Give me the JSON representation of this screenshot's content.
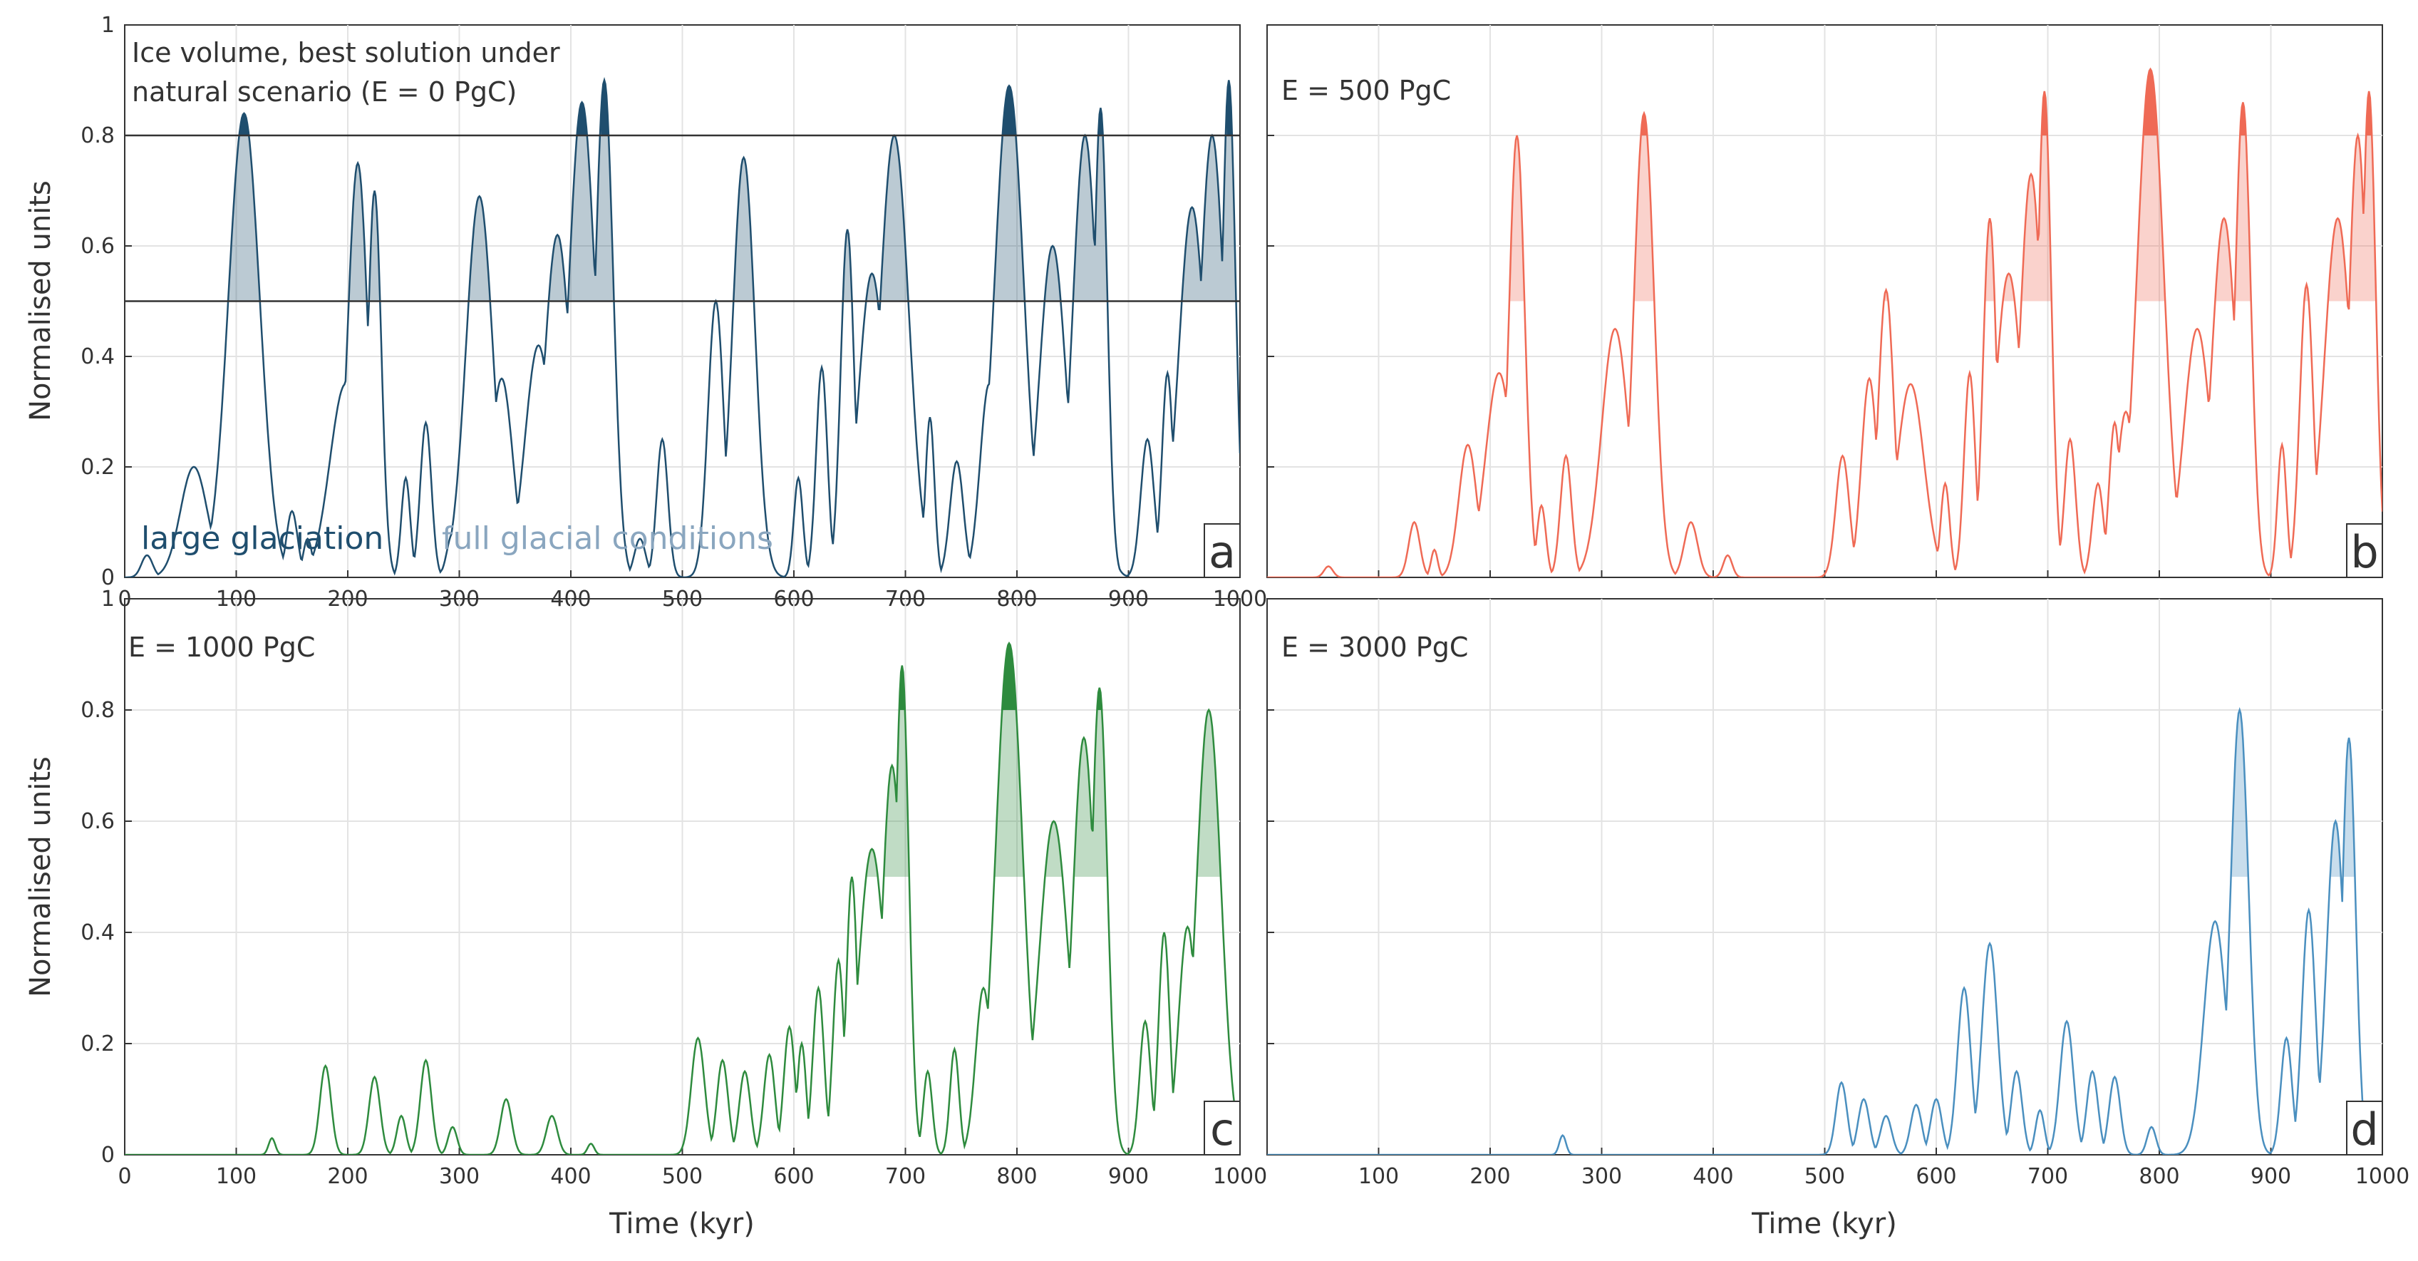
{
  "figure": {
    "x_axis_label": "Time (kyr)",
    "y_axis_label": "Normalised units",
    "x_ticks": [
      0,
      100,
      200,
      300,
      400,
      500,
      600,
      700,
      800,
      900,
      1000
    ],
    "y_ticks": [
      0,
      0.2,
      0.4,
      0.6,
      0.8,
      1
    ],
    "y_tick_labels": [
      "0",
      "0.2",
      "0.4",
      "0.6",
      "0.8",
      "1"
    ],
    "legend": {
      "large_glaciation": "large glaciation",
      "full_glacial": "full glacial conditions",
      "large_glaciation_color": "#1f4e6e",
      "full_glacial_color": "#8aa6bf"
    },
    "thresholds": {
      "full_glacial": 0.5,
      "large_glaciation": 0.8
    }
  },
  "chart_data": [
    {
      "type": "line",
      "panel_letter": "a",
      "title": "Ice volume, best solution under natural scenario (E = 0 PgC)",
      "title_lines": [
        "Ice volume, best solution under",
        "natural scenario (E = 0 PgC)"
      ],
      "color": "#1f4e6e",
      "xlim": [
        0,
        1000
      ],
      "ylim": [
        0,
        1
      ],
      "threshold_lines_shown": true,
      "x_tick_labels_shown": true,
      "peaks": [
        [
          20,
          0.04,
          5
        ],
        [
          62,
          0.2,
          12
        ],
        [
          107,
          0.84,
          14
        ],
        [
          132,
          0.13,
          5
        ],
        [
          150,
          0.12,
          5
        ],
        [
          164,
          0.07,
          4
        ],
        [
          183,
          0.07,
          4
        ],
        [
          198,
          0.35,
          14
        ],
        [
          209,
          0.75,
          9
        ],
        [
          224,
          0.7,
          6
        ],
        [
          252,
          0.18,
          4
        ],
        [
          270,
          0.28,
          5
        ],
        [
          294,
          0.08,
          5
        ],
        [
          318,
          0.69,
          12
        ],
        [
          338,
          0.36,
          10
        ],
        [
          371,
          0.42,
          12
        ],
        [
          388,
          0.62,
          12
        ],
        [
          410,
          0.86,
          12
        ],
        [
          430,
          0.9,
          8
        ],
        [
          462,
          0.07,
          5
        ],
        [
          482,
          0.25,
          5
        ],
        [
          530,
          0.5,
          7
        ],
        [
          555,
          0.76,
          10
        ],
        [
          604,
          0.18,
          4
        ],
        [
          625,
          0.38,
          5
        ],
        [
          648,
          0.63,
          6
        ],
        [
          670,
          0.55,
          12
        ],
        [
          690,
          0.8,
          13
        ],
        [
          722,
          0.29,
          4
        ],
        [
          746,
          0.21,
          6
        ],
        [
          764,
          0.05,
          3
        ],
        [
          775,
          0.35,
          8
        ],
        [
          793,
          0.89,
          13
        ],
        [
          832,
          0.6,
          12
        ],
        [
          861,
          0.8,
          11
        ],
        [
          875,
          0.85,
          6
        ],
        [
          917,
          0.25,
          6
        ],
        [
          935,
          0.37,
          5
        ],
        [
          957,
          0.67,
          12
        ],
        [
          975,
          0.8,
          11
        ],
        [
          990,
          0.9,
          6
        ]
      ]
    },
    {
      "type": "line",
      "panel_letter": "b",
      "title": "E = 500 PgC",
      "title_lines": [
        "E = 500 PgC"
      ],
      "color": "#ef6a55",
      "xlim": [
        0,
        1000
      ],
      "ylim": [
        0,
        1
      ],
      "threshold_lines_shown": false,
      "x_tick_labels_shown": false,
      "peaks": [
        [
          55,
          0.02,
          4
        ],
        [
          132,
          0.1,
          5
        ],
        [
          150,
          0.05,
          3
        ],
        [
          180,
          0.24,
          8
        ],
        [
          208,
          0.37,
          12
        ],
        [
          224,
          0.8,
          7
        ],
        [
          246,
          0.13,
          4
        ],
        [
          268,
          0.22,
          5
        ],
        [
          312,
          0.45,
          12
        ],
        [
          338,
          0.84,
          9
        ],
        [
          380,
          0.1,
          6
        ],
        [
          413,
          0.04,
          4
        ],
        [
          516,
          0.22,
          6
        ],
        [
          540,
          0.36,
          7
        ],
        [
          555,
          0.52,
          7
        ],
        [
          577,
          0.35,
          12
        ],
        [
          608,
          0.17,
          4
        ],
        [
          630,
          0.37,
          5
        ],
        [
          648,
          0.65,
          6
        ],
        [
          665,
          0.55,
          12
        ],
        [
          685,
          0.73,
          10
        ],
        [
          697,
          0.88,
          6
        ],
        [
          720,
          0.25,
          5
        ],
        [
          745,
          0.17,
          5
        ],
        [
          760,
          0.28,
          5
        ],
        [
          770,
          0.3,
          8
        ],
        [
          792,
          0.92,
          12
        ],
        [
          834,
          0.45,
          12
        ],
        [
          858,
          0.65,
          11
        ],
        [
          875,
          0.86,
          7
        ],
        [
          910,
          0.24,
          4
        ],
        [
          932,
          0.53,
          6
        ],
        [
          960,
          0.65,
          12
        ],
        [
          978,
          0.8,
          8
        ],
        [
          988,
          0.88,
          6
        ]
      ]
    },
    {
      "type": "line",
      "panel_letter": "c",
      "title": "E = 1000 PgC",
      "title_lines": [
        "E = 1000 PgC"
      ],
      "color": "#2e8b3e",
      "xlim": [
        0,
        1000
      ],
      "ylim": [
        0,
        1
      ],
      "threshold_lines_shown": false,
      "x_tick_labels_shown": true,
      "peaks": [
        [
          132,
          0.03,
          3
        ],
        [
          180,
          0.16,
          5
        ],
        [
          224,
          0.14,
          5
        ],
        [
          248,
          0.07,
          4
        ],
        [
          270,
          0.17,
          5
        ],
        [
          294,
          0.05,
          4
        ],
        [
          342,
          0.1,
          5
        ],
        [
          383,
          0.07,
          5
        ],
        [
          418,
          0.02,
          3
        ],
        [
          514,
          0.21,
          6
        ],
        [
          536,
          0.17,
          5
        ],
        [
          556,
          0.15,
          5
        ],
        [
          578,
          0.18,
          5
        ],
        [
          596,
          0.23,
          5
        ],
        [
          607,
          0.2,
          4
        ],
        [
          622,
          0.3,
          5
        ],
        [
          640,
          0.35,
          5
        ],
        [
          652,
          0.5,
          5
        ],
        [
          670,
          0.55,
          12
        ],
        [
          688,
          0.7,
          9
        ],
        [
          697,
          0.88,
          6
        ],
        [
          720,
          0.15,
          4
        ],
        [
          744,
          0.19,
          4
        ],
        [
          770,
          0.3,
          7
        ],
        [
          793,
          0.92,
          12
        ],
        [
          833,
          0.6,
          13
        ],
        [
          860,
          0.75,
          10
        ],
        [
          874,
          0.84,
          7
        ],
        [
          915,
          0.24,
          5
        ],
        [
          932,
          0.4,
          5
        ],
        [
          953,
          0.41,
          8
        ],
        [
          972,
          0.8,
          11
        ]
      ]
    },
    {
      "type": "line",
      "panel_letter": "d",
      "title": "E = 3000 PgC",
      "title_lines": [
        "E = 3000 PgC"
      ],
      "color": "#4a8fbf",
      "xlim": [
        0,
        1000
      ],
      "ylim": [
        0,
        1
      ],
      "threshold_lines_shown": false,
      "x_tick_labels_shown": true,
      "peaks": [
        [
          265,
          0.035,
          3
        ],
        [
          515,
          0.13,
          5
        ],
        [
          535,
          0.1,
          5
        ],
        [
          555,
          0.07,
          5
        ],
        [
          582,
          0.09,
          5
        ],
        [
          600,
          0.1,
          5
        ],
        [
          625,
          0.3,
          6
        ],
        [
          648,
          0.38,
          7
        ],
        [
          672,
          0.15,
          5
        ],
        [
          693,
          0.08,
          4
        ],
        [
          717,
          0.24,
          6
        ],
        [
          740,
          0.15,
          5
        ],
        [
          760,
          0.14,
          5
        ],
        [
          793,
          0.05,
          4
        ],
        [
          850,
          0.42,
          10
        ],
        [
          872,
          0.8,
          8
        ],
        [
          914,
          0.21,
          5
        ],
        [
          934,
          0.44,
          6
        ],
        [
          958,
          0.6,
          8
        ],
        [
          970,
          0.75,
          6
        ]
      ]
    }
  ]
}
